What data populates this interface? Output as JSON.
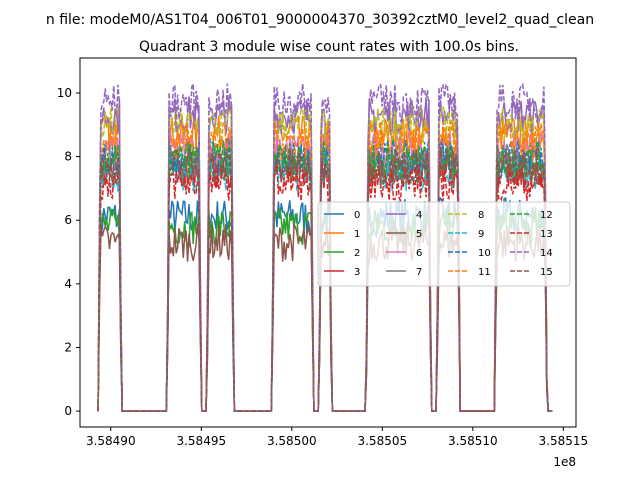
{
  "chart_data": {
    "type": "line",
    "suptitle": "n file: modeM0/AS1T04_006T01_9000004370_30392cztM0_level2_quad_clean",
    "title": "Quadrant 3 module wise count rates with 100.0s bins.",
    "xlabel": "",
    "ylabel": "",
    "x_offset_label": "1e8",
    "xlim": [
      3.584883,
      3.585157
    ],
    "ylim": [
      -0.5,
      11.1
    ],
    "xticks": [
      3.5849,
      3.58495,
      3.585,
      3.58505,
      3.5851,
      3.58515
    ],
    "xtick_labels": [
      "3.58490",
      "3.58495",
      "3.58500",
      "3.58505",
      "3.58510",
      "3.58515"
    ],
    "yticks": [
      0,
      2,
      4,
      6,
      8,
      10
    ],
    "ytick_labels": [
      "0",
      "2",
      "4",
      "6",
      "8",
      "10"
    ],
    "grid": false,
    "legend_position": "center-right",
    "legend_columns": 4,
    "segments": [
      {
        "x0": 3.584893,
        "x1": 3.584906
      },
      {
        "x0": 3.584931,
        "x1": 3.58495
      },
      {
        "x0": 3.584953,
        "x1": 3.584968
      },
      {
        "x0": 3.584989,
        "x1": 3.585012
      },
      {
        "x0": 3.585015,
        "x1": 3.585022
      },
      {
        "x0": 3.585041,
        "x1": 3.585077
      },
      {
        "x0": 3.58508,
        "x1": 3.585093
      },
      {
        "x0": 3.585112,
        "x1": 3.585141
      }
    ],
    "series": [
      {
        "name": "0",
        "color": "#1f77b4",
        "dash": "solid",
        "level": 6.1
      },
      {
        "name": "1",
        "color": "#ff7f0e",
        "dash": "solid",
        "level": 8.7
      },
      {
        "name": "2",
        "color": "#2ca02c",
        "dash": "solid",
        "level": 5.8
      },
      {
        "name": "3",
        "color": "#d62728",
        "dash": "solid",
        "level": 7.6
      },
      {
        "name": "4",
        "color": "#9467bd",
        "dash": "solid",
        "level": 9.3
      },
      {
        "name": "5",
        "color": "#8c564b",
        "dash": "solid",
        "level": 5.3
      },
      {
        "name": "6",
        "color": "#e377c2",
        "dash": "solid",
        "level": 8.2
      },
      {
        "name": "7",
        "color": "#7f7f7f",
        "dash": "solid",
        "level": 7.8
      },
      {
        "name": "8",
        "color": "#bcbd22",
        "dash": "dashed",
        "level": 9.0
      },
      {
        "name": "9",
        "color": "#17becf",
        "dash": "dashed",
        "level": 7.5
      },
      {
        "name": "10",
        "color": "#1f77b4",
        "dash": "dashed",
        "level": 8.0
      },
      {
        "name": "11",
        "color": "#ff7f0e",
        "dash": "dashed",
        "level": 8.5
      },
      {
        "name": "12",
        "color": "#2ca02c",
        "dash": "dashed",
        "level": 7.9
      },
      {
        "name": "13",
        "color": "#d62728",
        "dash": "dashed",
        "level": 7.2
      },
      {
        "name": "14",
        "color": "#9467bd",
        "dash": "dashed",
        "level": 9.7
      },
      {
        "name": "15",
        "color": "#8c564b",
        "dash": "dashed",
        "level": 7.7
      }
    ]
  }
}
